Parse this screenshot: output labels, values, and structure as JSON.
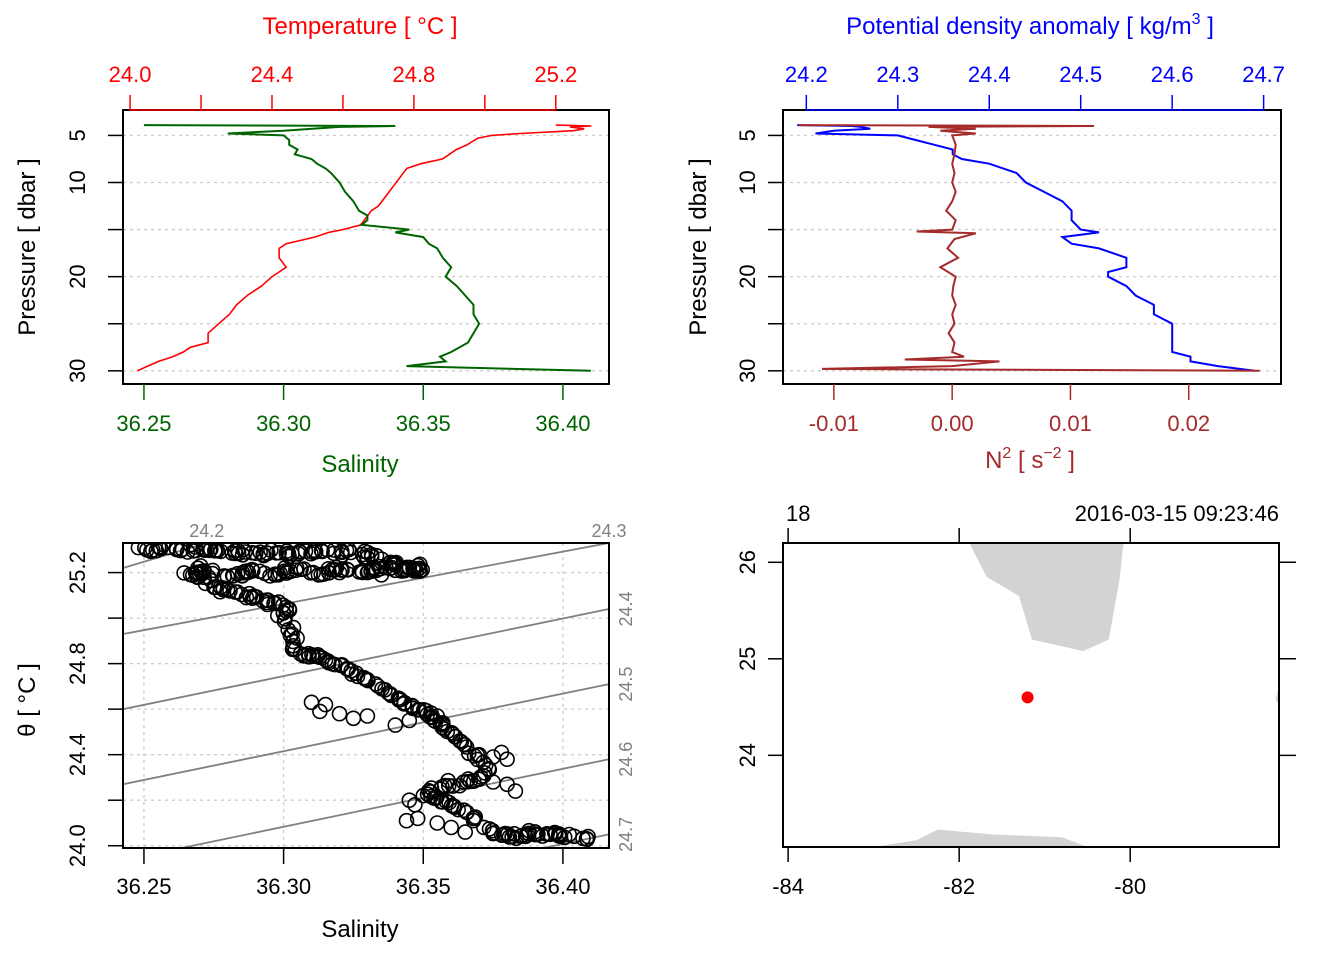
{
  "colors": {
    "temperature": "#ff0000",
    "salinity": "#006400",
    "density": "#0000ff",
    "n2": "#a52a2a",
    "ts_points": "#000000",
    "isopycnal": "#808080",
    "grid": "#cccccc",
    "land": "#d3d3d3",
    "station": "#ff0000"
  },
  "chart_data": [
    {
      "id": "profile-temperature-salinity",
      "type": "line",
      "yaxis": {
        "label": "Pressure [ dbar ]",
        "range": [
          2.3,
          31.4
        ],
        "reversed": true,
        "ticks": [
          5,
          10,
          20,
          30
        ],
        "tick_labels": [
          "5",
          "10",
          "20",
          "30"
        ],
        "minor_ticks": [
          15,
          25
        ]
      },
      "top_axis": {
        "label": "Temperature [ °C ]",
        "range": [
          23.98,
          25.35
        ],
        "ticks": [
          24.0,
          24.2,
          24.4,
          24.6,
          24.8,
          25.0,
          25.2
        ],
        "tick_labels": [
          "24.0",
          "",
          "24.4",
          "",
          "24.8",
          "",
          "25.2"
        ]
      },
      "bottom_axis": {
        "label": "Salinity",
        "range": [
          36.2425,
          36.4165
        ],
        "ticks": [
          36.25,
          36.3,
          36.35,
          36.4
        ],
        "tick_labels": [
          "36.25",
          "36.30",
          "36.35",
          "36.40"
        ]
      },
      "grid": "horizontal dotted",
      "series": [
        {
          "name": "Temperature",
          "axis": "top",
          "pressure": [
            3.9,
            4.0,
            4.1,
            4.3,
            4.5,
            4.8,
            5.0,
            5.3,
            6.0,
            6.5,
            7.0,
            7.5,
            8.0,
            8.5,
            9.5,
            10.5,
            11.5,
            12.5,
            13.0,
            13.5,
            14.0,
            14.5,
            15.0,
            15.3,
            15.8,
            16.5,
            17.0,
            18.0,
            19.0,
            19.5,
            20.0,
            21.0,
            22.0,
            23.0,
            24.0,
            25.0,
            26.0,
            27.0,
            27.5,
            28.0,
            28.5,
            29.0,
            29.5,
            30.0
          ],
          "values": [
            25.2,
            25.3,
            25.24,
            25.28,
            25.25,
            25.1,
            25.02,
            24.98,
            24.95,
            24.92,
            24.9,
            24.88,
            24.82,
            24.78,
            24.76,
            24.74,
            24.72,
            24.7,
            24.68,
            24.67,
            24.66,
            24.65,
            24.6,
            24.56,
            24.52,
            24.44,
            24.42,
            24.42,
            24.44,
            24.42,
            24.4,
            24.37,
            24.33,
            24.3,
            24.28,
            24.25,
            24.22,
            24.22,
            24.17,
            24.15,
            24.12,
            24.08,
            24.05,
            24.02
          ]
        },
        {
          "name": "Salinity",
          "axis": "bottom",
          "pressure": [
            3.9,
            4.0,
            4.1,
            4.5,
            4.8,
            5.0,
            5.5,
            6.0,
            6.5,
            7.0,
            7.5,
            8.0,
            8.5,
            9.0,
            10.0,
            11.0,
            12.0,
            13.0,
            13.5,
            14.0,
            14.5,
            15.0,
            15.3,
            15.8,
            16.5,
            17.0,
            18.0,
            19.0,
            20.0,
            21.0,
            22.0,
            23.0,
            24.0,
            25.0,
            26.0,
            27.0,
            28.0,
            28.5,
            29.0,
            29.5,
            30.0
          ],
          "values": [
            36.25,
            36.34,
            36.32,
            36.3,
            36.28,
            36.3,
            36.302,
            36.302,
            36.305,
            36.304,
            36.31,
            36.312,
            36.315,
            36.317,
            36.32,
            36.322,
            36.325,
            36.327,
            36.33,
            36.33,
            36.328,
            36.345,
            36.34,
            36.35,
            36.352,
            36.355,
            36.357,
            36.36,
            36.358,
            36.362,
            36.365,
            36.368,
            36.368,
            36.37,
            36.368,
            36.366,
            36.36,
            36.356,
            36.358,
            36.344,
            36.41
          ]
        }
      ]
    },
    {
      "id": "profile-density-n2",
      "type": "line",
      "yaxis": {
        "label": "Pressure [ dbar ]",
        "range": [
          2.3,
          31.4
        ],
        "reversed": true,
        "ticks": [
          5,
          10,
          20,
          30
        ],
        "tick_labels": [
          "5",
          "10",
          "20",
          "30"
        ],
        "minor_ticks": [
          15,
          25
        ]
      },
      "top_axis": {
        "label": "Potential density anomaly [ kg/m³ ]",
        "label_main": "Potential density anomaly [ kg/m",
        "label_sup": "3",
        "label_end": " ]",
        "range": [
          24.1745,
          24.719
        ],
        "ticks": [
          24.2,
          24.3,
          24.4,
          24.5,
          24.6,
          24.7
        ],
        "tick_labels": [
          "24.2",
          "24.3",
          "24.4",
          "24.5",
          "24.6",
          "24.7"
        ]
      },
      "bottom_axis": {
        "label": "N² [ s⁻² ]",
        "label_main": "N",
        "label_sup": "2",
        "label_mid": " [ s",
        "label_sup2": "−2",
        "label_end": " ]",
        "range": [
          -0.0143,
          0.0278
        ],
        "ticks": [
          -0.01,
          0.0,
          0.01,
          0.02
        ],
        "tick_labels": [
          "-0.01",
          "0.00",
          "0.01",
          "0.02"
        ]
      },
      "grid": "horizontal dotted",
      "series": [
        {
          "name": "Potential density anomaly",
          "axis": "top",
          "pressure": [
            3.9,
            4.0,
            4.1,
            4.3,
            4.5,
            4.8,
            5.0,
            5.5,
            6.0,
            6.5,
            7.0,
            7.5,
            8.0,
            9.0,
            10.0,
            11.0,
            12.0,
            13.0,
            14.0,
            15.0,
            15.3,
            15.8,
            16.5,
            17.0,
            18.0,
            19.0,
            19.5,
            20.0,
            21.0,
            22.0,
            23.0,
            24.0,
            25.0,
            26.0,
            27.0,
            28.0,
            28.5,
            29.0,
            29.5,
            30.0
          ],
          "values": [
            24.19,
            24.25,
            24.26,
            24.27,
            24.23,
            24.21,
            24.3,
            24.32,
            24.34,
            24.36,
            24.36,
            24.37,
            24.4,
            24.43,
            24.44,
            24.46,
            24.48,
            24.49,
            24.49,
            24.5,
            24.52,
            24.48,
            24.49,
            24.52,
            24.55,
            24.55,
            24.53,
            24.53,
            24.55,
            24.56,
            24.58,
            24.58,
            24.6,
            24.6,
            24.6,
            24.6,
            24.62,
            24.62,
            24.65,
            24.69
          ]
        },
        {
          "name": "N2",
          "axis": "bottom",
          "pressure": [
            3.9,
            4.0,
            4.1,
            4.3,
            4.5,
            4.8,
            5.0,
            6.0,
            7.0,
            8.0,
            9.0,
            10.0,
            11.0,
            12.0,
            13.0,
            14.0,
            15.0,
            15.2,
            15.4,
            16.0,
            17.0,
            18.0,
            19.0,
            20.0,
            21.0,
            22.0,
            23.0,
            24.0,
            25.0,
            26.0,
            27.0,
            28.0,
            28.5,
            28.8,
            29.0,
            29.5,
            29.8,
            30.0
          ],
          "values": [
            -0.013,
            0.012,
            -0.002,
            0.002,
            -0.001,
            0.002,
            0.0,
            0.0003,
            0.0002,
            0.0,
            0.0002,
            0.0,
            0.0003,
            0.0,
            -0.0005,
            0.0003,
            0.0,
            -0.003,
            0.002,
            0.0002,
            -0.0004,
            0.0005,
            -0.001,
            0.0003,
            0.0001,
            0.0,
            0.0003,
            0.0,
            0.0002,
            -0.0003,
            0.0002,
            0.0,
            0.001,
            -0.004,
            0.004,
            0.0,
            -0.011,
            0.026
          ]
        }
      ]
    },
    {
      "id": "ts-diagram",
      "type": "scatter",
      "xaxis": {
        "label": "Salinity",
        "range": [
          36.2425,
          36.4165
        ],
        "ticks": [
          36.25,
          36.3,
          36.35,
          36.4
        ],
        "tick_labels": [
          "36.25",
          "36.30",
          "36.35",
          "36.40"
        ]
      },
      "yaxis": {
        "label": "θ [ °C ]",
        "range": [
          23.99,
          25.33
        ],
        "ticks": [
          24.0,
          24.2,
          24.4,
          24.6,
          24.8,
          25.0,
          25.2
        ],
        "tick_labels": [
          "24.0",
          "",
          "24.4",
          "",
          "24.8",
          "",
          "25.2"
        ]
      },
      "grid": "dotted",
      "isopycnals": {
        "labels": [
          "24.2",
          "24.3",
          "24.4",
          "24.5",
          "24.6",
          "24.7"
        ],
        "lines": [
          {
            "sigma": 24.2,
            "s0": 36.2425,
            "t0": 25.22,
            "s1": 36.2725,
            "t1": 25.33,
            "label_pos": "top"
          },
          {
            "sigma": 24.3,
            "s0": 36.2425,
            "t0": 24.93,
            "s1": 36.4165,
            "t1": 25.33,
            "label_pos": "top"
          },
          {
            "sigma": 24.4,
            "s0": 36.2425,
            "t0": 24.6,
            "s1": 36.4165,
            "t1": 25.04,
            "label_pos": "right"
          },
          {
            "sigma": 24.5,
            "s0": 36.2425,
            "t0": 24.27,
            "s1": 36.4165,
            "t1": 24.71,
            "label_pos": "right"
          },
          {
            "sigma": 24.6,
            "s0": 36.2635,
            "t0": 23.99,
            "s1": 36.4165,
            "t1": 24.38,
            "label_pos": "right"
          },
          {
            "sigma": 24.7,
            "s0": 36.393,
            "t0": 23.99,
            "s1": 36.4165,
            "t1": 24.05,
            "label_pos": "right"
          }
        ]
      },
      "path_points": [
        [
          36.248,
          25.31
        ],
        [
          36.26,
          25.31
        ],
        [
          36.27,
          25.305
        ],
        [
          36.28,
          25.29
        ],
        [
          36.29,
          25.285
        ],
        [
          36.3,
          25.28
        ],
        [
          36.31,
          25.28
        ],
        [
          36.32,
          25.29
        ],
        [
          36.33,
          25.28
        ],
        [
          36.34,
          25.24
        ],
        [
          36.35,
          25.22
        ],
        [
          36.265,
          25.19
        ],
        [
          36.267,
          25.21
        ],
        [
          36.269,
          25.23
        ],
        [
          36.274,
          25.14
        ],
        [
          36.286,
          25.1
        ],
        [
          36.292,
          25.08
        ],
        [
          36.295,
          25.07
        ],
        [
          36.299,
          25.06
        ],
        [
          36.302,
          25.04
        ],
        [
          36.303,
          25.02
        ],
        [
          36.3,
          25.0
        ],
        [
          36.302,
          24.98
        ],
        [
          36.301,
          24.94
        ],
        [
          36.303,
          24.92
        ],
        [
          36.302,
          24.88
        ],
        [
          36.306,
          24.85
        ],
        [
          36.31,
          24.84
        ],
        [
          36.315,
          24.82
        ],
        [
          36.318,
          24.8
        ],
        [
          36.322,
          24.78
        ],
        [
          36.326,
          24.75
        ],
        [
          36.33,
          24.73
        ],
        [
          36.335,
          24.7
        ],
        [
          36.338,
          24.67
        ],
        [
          36.34,
          24.65
        ],
        [
          36.345,
          24.62
        ],
        [
          36.35,
          24.6
        ],
        [
          36.352,
          24.58
        ],
        [
          36.355,
          24.55
        ],
        [
          36.358,
          24.52
        ],
        [
          36.36,
          24.5
        ],
        [
          36.362,
          24.47
        ],
        [
          36.365,
          24.44
        ],
        [
          36.368,
          24.4
        ],
        [
          36.37,
          24.37
        ],
        [
          36.372,
          24.34
        ],
        [
          36.37,
          24.31
        ],
        [
          36.365,
          24.29
        ],
        [
          36.36,
          24.27
        ],
        [
          36.356,
          24.25
        ],
        [
          36.352,
          24.22
        ],
        [
          36.355,
          24.2
        ],
        [
          36.36,
          24.18
        ],
        [
          36.365,
          24.15
        ],
        [
          36.368,
          24.12
        ],
        [
          36.37,
          24.1
        ],
        [
          36.372,
          24.08
        ],
        [
          36.375,
          24.06
        ],
        [
          36.38,
          24.05
        ],
        [
          36.385,
          24.05
        ],
        [
          36.39,
          24.05
        ],
        [
          36.393,
          24.04
        ],
        [
          36.4,
          24.05
        ],
        [
          36.4,
          24.03
        ],
        [
          36.409,
          24.04
        ]
      ],
      "scatter_extras": [
        [
          36.33,
          25.2
        ],
        [
          36.335,
          25.19
        ],
        [
          36.32,
          25.2
        ],
        [
          36.325,
          25.25
        ],
        [
          36.34,
          25.21
        ],
        [
          36.345,
          25.22
        ],
        [
          36.31,
          24.63
        ],
        [
          36.315,
          24.62
        ],
        [
          36.313,
          24.59
        ],
        [
          36.32,
          24.58
        ],
        [
          36.325,
          24.56
        ],
        [
          36.33,
          24.57
        ],
        [
          36.34,
          24.53
        ],
        [
          36.345,
          24.55
        ],
        [
          36.355,
          24.57
        ],
        [
          36.357,
          24.54
        ],
        [
          36.37,
          24.4
        ],
        [
          36.375,
          24.39
        ],
        [
          36.378,
          24.41
        ],
        [
          36.38,
          24.38
        ],
        [
          36.345,
          24.2
        ],
        [
          36.347,
          24.18
        ],
        [
          36.35,
          24.22
        ],
        [
          36.375,
          24.28
        ],
        [
          36.38,
          24.27
        ],
        [
          36.383,
          24.24
        ],
        [
          36.344,
          24.11
        ],
        [
          36.348,
          24.12
        ],
        [
          36.355,
          24.1
        ],
        [
          36.36,
          24.08
        ],
        [
          36.365,
          24.06
        ]
      ]
    },
    {
      "id": "station-map",
      "type": "scatter",
      "xaxis": {
        "label": "",
        "range": [
          -84.06,
          -78.26
        ],
        "ticks": [
          -84,
          -82,
          -80
        ],
        "tick_labels": [
          "-84",
          "-82",
          "-80"
        ]
      },
      "yaxis": {
        "label": "",
        "range": [
          23.05,
          26.2
        ],
        "ticks": [
          24,
          25,
          26
        ],
        "tick_labels": [
          "24",
          "25",
          "26"
        ]
      },
      "top_labels": {
        "left": "18",
        "right": "2016-03-15 09:23:46"
      },
      "top_ticks": [
        -84,
        -82,
        -80
      ],
      "right_ticks": [
        24,
        25,
        26
      ],
      "station": {
        "lon": -81.2,
        "lat": 24.6
      },
      "land": [
        [
          [
            -81.88,
            26.2
          ],
          [
            -81.68,
            25.85
          ],
          [
            -81.3,
            25.65
          ],
          [
            -81.15,
            25.2
          ],
          [
            -80.55,
            25.08
          ],
          [
            -80.25,
            25.2
          ],
          [
            -80.12,
            25.85
          ],
          [
            -80.08,
            26.2
          ]
        ],
        [
          [
            -83.0,
            23.05
          ],
          [
            -82.5,
            23.12
          ],
          [
            -82.25,
            23.23
          ],
          [
            -81.6,
            23.18
          ],
          [
            -80.8,
            23.15
          ],
          [
            -80.5,
            23.05
          ]
        ],
        [
          [
            -78.26,
            24.7
          ],
          [
            -78.3,
            24.58
          ],
          [
            -78.26,
            24.52
          ]
        ]
      ]
    }
  ]
}
